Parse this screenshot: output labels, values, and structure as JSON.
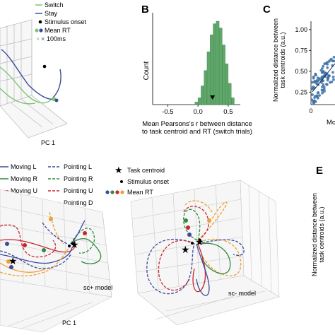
{
  "panels": {
    "b": "B",
    "c": "C",
    "e": "E"
  },
  "legend_top": {
    "items": [
      {
        "label": "Switch",
        "color": "#7cc576",
        "kind": "line"
      },
      {
        "label": "Stay",
        "color": "#3b4a9c",
        "kind": "line"
      },
      {
        "label": "Stimulus onset",
        "color": "#000000",
        "kind": "dot"
      },
      {
        "label": "Mean RT",
        "color": "#3b4a9c",
        "kind": "dots"
      },
      {
        "label": "100ms",
        "color": "#7cc576",
        "kind": "cross"
      }
    ]
  },
  "panel_a_top": {
    "xlabel": "PC 1"
  },
  "chart_data": [
    {
      "type": "bar",
      "panel": "B",
      "categories": [
        "-0.05",
        "0.00",
        "0.05",
        "0.10",
        "0.15",
        "0.20",
        "0.25",
        "0.30",
        "0.35",
        "0.40",
        "0.45",
        "0.50",
        "0.55"
      ],
      "values": [
        3,
        8,
        22,
        40,
        62,
        82,
        95,
        98,
        90,
        70,
        48,
        25,
        8
      ],
      "xlabel": "Mean Pearsons's r between distance to task centroid and RT (switch trials)",
      "ylabel": "Count",
      "xticks": [
        "-0.5",
        "0.0",
        "0.5"
      ],
      "xlim": [
        -0.75,
        0.7
      ],
      "mean_marker": 0.24,
      "color": "#5fa86a",
      "grid": false
    },
    {
      "type": "scatter",
      "panel": "C",
      "ylabel": "Normalized distance between task centroids (a.u.)",
      "xlabel": "Mo",
      "yticks": [
        "0.25",
        "0.50",
        "0.75",
        "1.00"
      ],
      "xticks": [
        "0"
      ],
      "color": "#3b6ea5"
    }
  ],
  "legend_bottom": {
    "col1": [
      {
        "label": "Moving L",
        "color": "#3b4a9c"
      },
      {
        "label": "Moving R",
        "color": "#2e8b3e"
      },
      {
        "label": "Moving U",
        "color": "#c8262f"
      },
      {
        "label": "Moving D",
        "color": "#f0a030"
      }
    ],
    "col2": [
      {
        "label": "Pointing L",
        "color": "#3b4a9c"
      },
      {
        "label": "Pointing R",
        "color": "#2e8b3e"
      },
      {
        "label": "Pointing U",
        "color": "#c8262f"
      },
      {
        "label": "Pointing D",
        "color": "#f0a030"
      }
    ],
    "col3": [
      {
        "label": "Task centroid",
        "kind": "star"
      },
      {
        "label": "Stimulus onset",
        "kind": "dot"
      },
      {
        "label": "Mean RT",
        "kind": "dots4"
      }
    ]
  },
  "panel_d": {
    "left_label": "sc+ model",
    "right_label": "sc- model",
    "xlabel": "PC 1"
  },
  "panel_e": {
    "ylabel": "Normalized distance between task centroids (a.u.)"
  }
}
